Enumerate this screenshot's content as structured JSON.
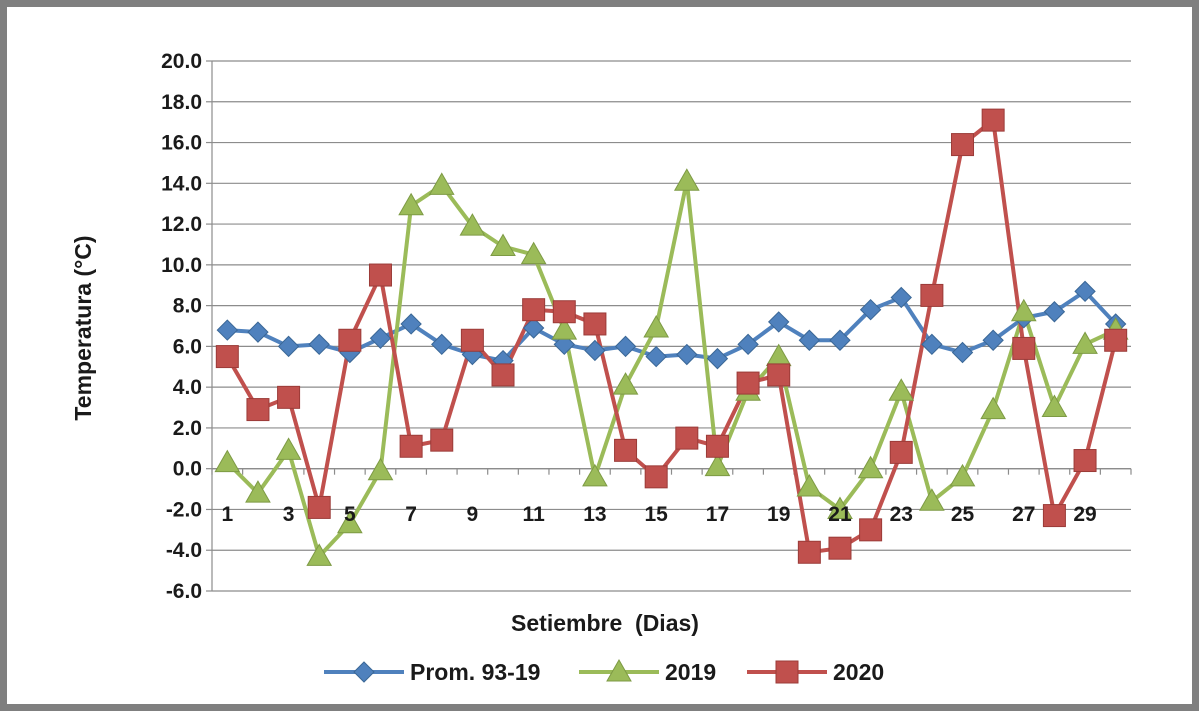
{
  "chart_data": {
    "type": "line",
    "xlabel": "Setiembre  (Dias)",
    "ylabel": "Temperatura (°C)",
    "ylim": [
      -6,
      20
    ],
    "y_ticks": [
      "20.0",
      "18.0",
      "16.0",
      "14.0",
      "12.0",
      "10.0",
      "8.0",
      "6.0",
      "4.0",
      "2.0",
      "0.0",
      "-2.0",
      "-4.0",
      "-6.0"
    ],
    "x_tick_labels": [
      "1",
      "3",
      "5",
      "7",
      "9",
      "11",
      "13",
      "15",
      "17",
      "19",
      "21",
      "23",
      "25",
      "27",
      "29"
    ],
    "x": [
      1,
      2,
      3,
      4,
      5,
      6,
      7,
      8,
      9,
      10,
      11,
      12,
      13,
      14,
      15,
      16,
      17,
      18,
      19,
      20,
      21,
      22,
      23,
      24,
      25,
      26,
      27,
      28,
      29,
      30
    ],
    "grid": "horizontal",
    "legend_position": "bottom",
    "series": [
      {
        "name": "Prom. 93-19",
        "color": "#4f81bd",
        "marker": "diamond",
        "values": [
          6.8,
          6.7,
          6.0,
          6.1,
          5.7,
          6.4,
          7.1,
          6.1,
          5.6,
          5.3,
          6.9,
          6.1,
          5.8,
          6.0,
          5.5,
          5.6,
          5.4,
          6.1,
          7.2,
          6.3,
          6.3,
          7.8,
          8.4,
          6.1,
          5.7,
          6.3,
          7.4,
          7.7,
          8.7,
          7.1
        ]
      },
      {
        "name": "2019",
        "color": "#9bbb59",
        "marker": "triangle",
        "values": [
          0.3,
          -1.2,
          0.9,
          -4.3,
          -2.7,
          -0.1,
          12.9,
          13.9,
          11.9,
          10.9,
          10.5,
          6.8,
          -0.4,
          4.1,
          6.9,
          14.1,
          0.1,
          3.8,
          5.5,
          -0.9,
          -2.0,
          0.0,
          3.8,
          -1.6,
          -0.4,
          2.9,
          7.7,
          3.0,
          6.1,
          6.8
        ]
      },
      {
        "name": "2020",
        "color": "#c0504d",
        "marker": "square",
        "values": [
          5.5,
          2.9,
          3.5,
          -1.9,
          6.3,
          9.5,
          1.1,
          1.4,
          6.3,
          4.6,
          7.8,
          7.7,
          7.1,
          0.9,
          -0.4,
          1.5,
          1.1,
          4.2,
          4.6,
          -4.1,
          -3.9,
          -3.0,
          0.8,
          8.5,
          15.9,
          17.1,
          5.9,
          -2.3,
          0.4,
          6.3
        ]
      }
    ]
  }
}
